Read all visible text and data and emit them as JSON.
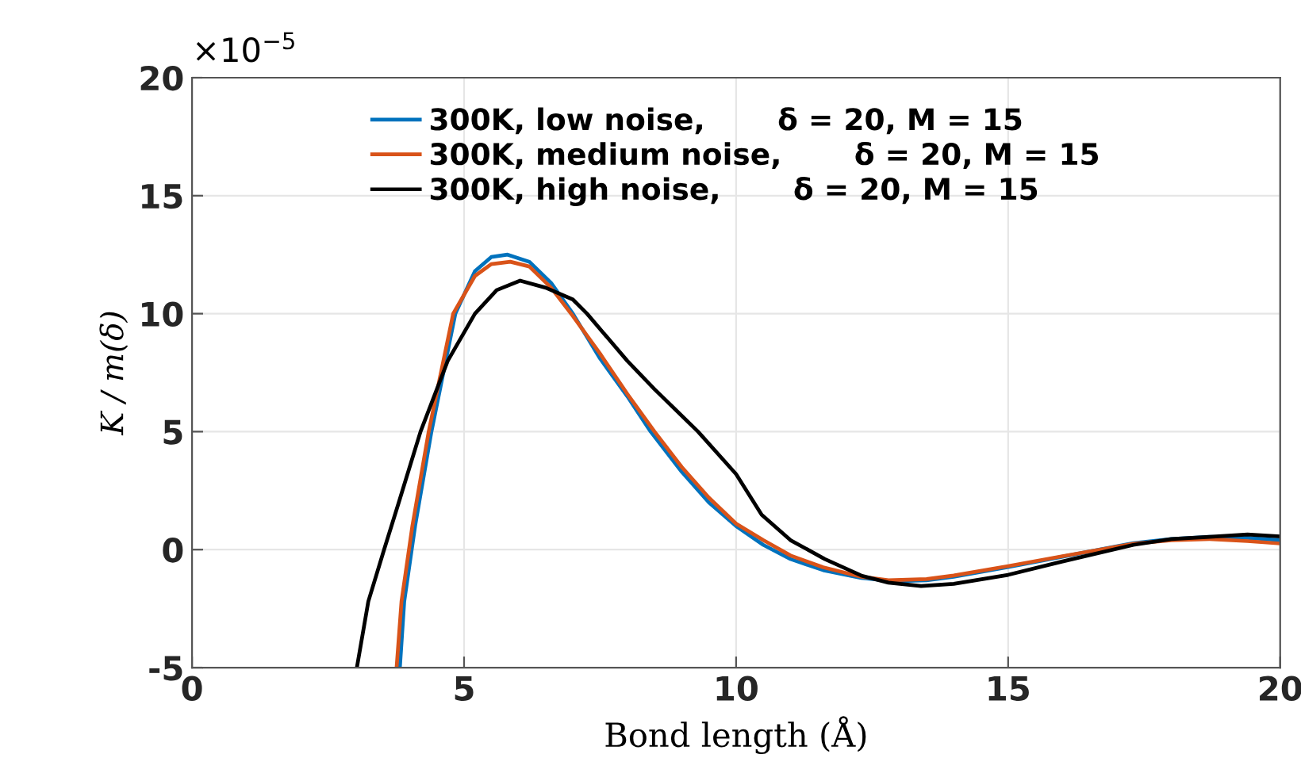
{
  "chart_data": {
    "type": "line",
    "xlabel": "Bond length (Å)",
    "ylabel": "K / m(δ)",
    "annotations": [
      "×10$^{−5}$"
    ],
    "xlim": [
      0,
      20
    ],
    "xticks": [
      0,
      5,
      10,
      15,
      20
    ],
    "ylim": [
      -5,
      20
    ],
    "yticks": [
      -5,
      0,
      5,
      10,
      15,
      20
    ],
    "grid": true,
    "legend": "top",
    "line_style": "solid",
    "marker": "none",
    "series": [
      {
        "name": "300K, low noise,       δ = 20, M = 15",
        "color": "#0072bd",
        "x": [
          3.82,
          3.9,
          4.1,
          4.4,
          4.84,
          5.2,
          5.5,
          5.8,
          6.2,
          6.6,
          7.0,
          7.5,
          8.0,
          8.43,
          9,
          9.5,
          10,
          10.5,
          11,
          11.6,
          12.3,
          12.9,
          13.5,
          14,
          15,
          16,
          17.3,
          18,
          18.7,
          19.4,
          20
        ],
        "values": [
          -5,
          -2.2,
          1,
          5,
          10,
          11.8,
          12.4,
          12.5,
          12.2,
          11.3,
          10,
          8.1,
          6.5,
          5,
          3.3,
          2,
          1,
          0.2,
          -0.4,
          -0.87,
          -1.2,
          -1.34,
          -1.3,
          -1.15,
          -0.74,
          -0.3,
          0.27,
          0.45,
          0.54,
          0.5,
          0.4
        ]
      },
      {
        "name": "300K, medium noise,       δ = 20, M = 15",
        "color": "#d95319",
        "x": [
          3.76,
          3.85,
          4.05,
          4.35,
          4.8,
          5.2,
          5.5,
          5.85,
          6.2,
          6.6,
          7.0,
          7.5,
          8.0,
          8.5,
          9,
          9.5,
          10,
          10.5,
          11,
          11.6,
          12.3,
          12.8,
          13.5,
          14,
          15,
          16,
          17.3,
          18,
          18.7,
          19.4,
          20
        ],
        "values": [
          -5,
          -2.2,
          1,
          5,
          10,
          11.6,
          12.1,
          12.2,
          12.0,
          11.1,
          9.9,
          8.3,
          6.6,
          5,
          3.5,
          2.2,
          1.1,
          0.4,
          -0.25,
          -0.75,
          -1.15,
          -1.3,
          -1.25,
          -1.1,
          -0.7,
          -0.28,
          0.25,
          0.4,
          0.45,
          0.36,
          0.26
        ]
      },
      {
        "name": "300K, high noise,       δ = 20, M = 15",
        "color": "#000000",
        "x": [
          3.03,
          3.24,
          3.53,
          3.8,
          4.2,
          4.7,
          5.2,
          5.6,
          6.03,
          6.5,
          7.0,
          7.26,
          8,
          8.5,
          9.3,
          10,
          10.47,
          11,
          11.63,
          12.3,
          12.8,
          13.4,
          14,
          15,
          16,
          17.3,
          18,
          18.7,
          19.4,
          20
        ],
        "values": [
          -5,
          -2.2,
          0,
          2,
          5,
          8,
          10,
          11,
          11.4,
          11.1,
          10.6,
          10,
          8,
          6.8,
          5,
          3.2,
          1.48,
          0.4,
          -0.4,
          -1.1,
          -1.4,
          -1.54,
          -1.45,
          -1.07,
          -0.5,
          0.2,
          0.45,
          0.54,
          0.64,
          0.56
        ]
      }
    ]
  }
}
